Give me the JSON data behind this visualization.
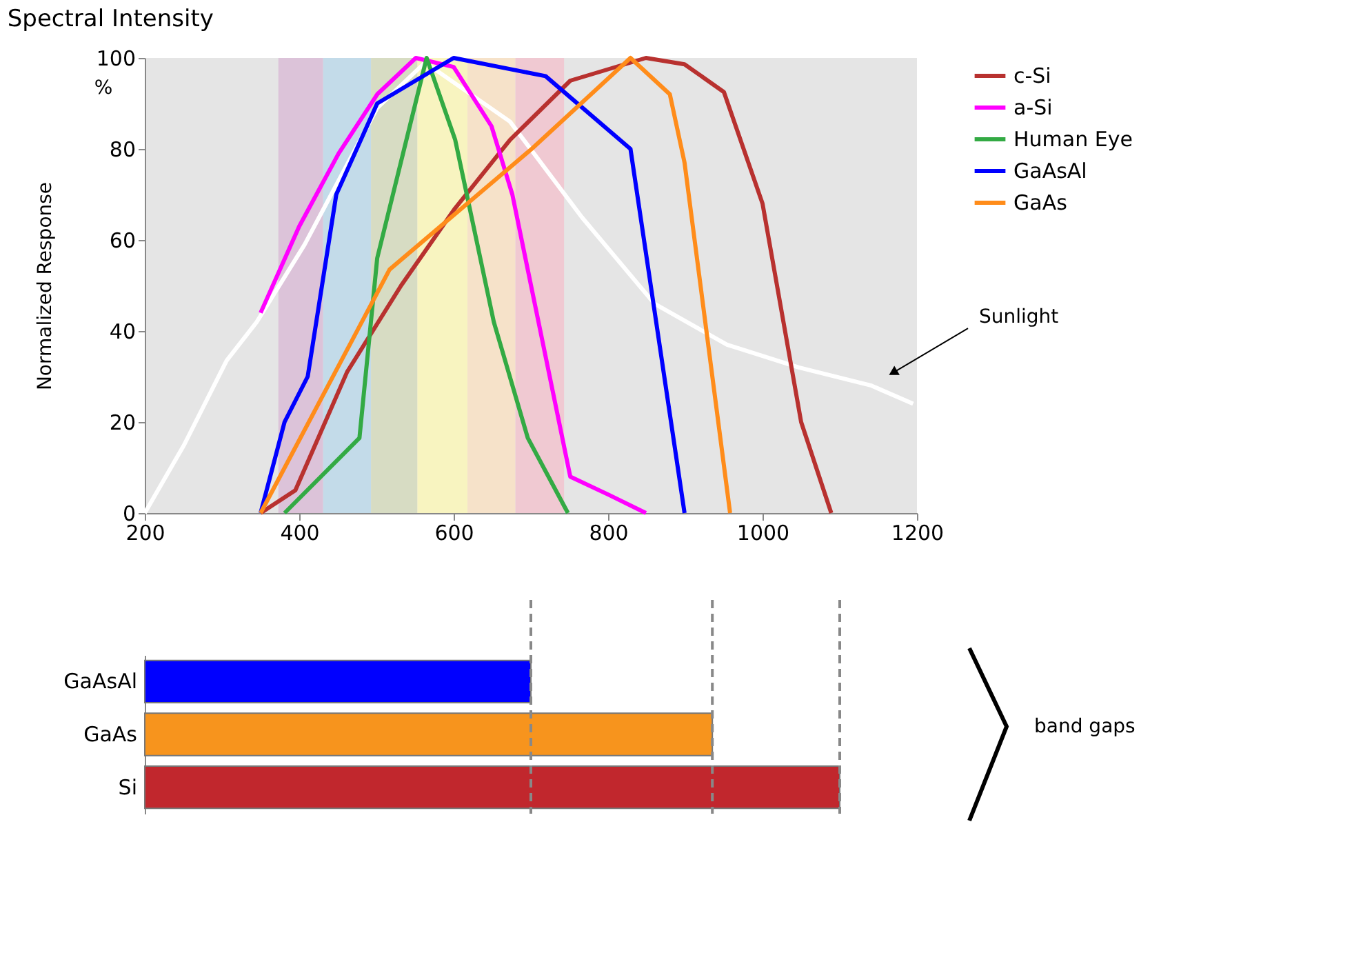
{
  "chart_data": [
    {
      "type": "line",
      "title": "Spectral Intensity",
      "ylabel": "Normalized Response",
      "annotations": [
        "%",
        "Sunlight"
      ],
      "xlim": [
        200,
        1200
      ],
      "xticks": [
        200,
        400,
        600,
        800,
        1000,
        1200
      ],
      "ylim": [
        0,
        100
      ],
      "yticks": [
        0,
        20,
        40,
        60,
        80,
        100
      ],
      "grid": false,
      "legend": "right",
      "bands": [
        {
          "axis": "x",
          "from": 373,
          "to": 431,
          "color": "#dcc3d9"
        },
        {
          "axis": "x",
          "from": 431,
          "to": 493,
          "color": "#c3dbe9"
        },
        {
          "axis": "x",
          "from": 493,
          "to": 553,
          "color": "#d7dcc3"
        },
        {
          "axis": "x",
          "from": 553,
          "to": 618,
          "color": "#f8f4c0"
        },
        {
          "axis": "x",
          "from": 618,
          "to": 680,
          "color": "#f6e2c9"
        },
        {
          "axis": "x",
          "from": 680,
          "to": 743,
          "color": "#f0c9d2"
        }
      ],
      "series": [
        {
          "color": "#ffffff",
          "x": [
            200,
            251,
            306,
            345,
            407,
            501,
            563,
            673,
            766,
            860,
            954,
            1047,
            1141,
            1195
          ],
          "values": [
            0,
            15,
            33.5,
            42,
            59,
            89,
            99,
            86,
            65,
            46,
            37,
            32,
            28,
            24
          ]
        },
        {
          "name": "c-Si",
          "color": "#b8312f",
          "x": [
            350,
            395,
            462,
            532,
            602,
            673,
            751,
            849,
            899,
            950,
            1000,
            1050,
            1089
          ],
          "values": [
            0,
            5,
            31,
            50,
            67,
            82,
            95,
            100,
            98.6,
            92.5,
            68,
            20,
            0
          ]
        },
        {
          "name": "a-Si",
          "color": "#ff00ff",
          "x": [
            350,
            400,
            451,
            501,
            551,
            600,
            649,
            676,
            751,
            801,
            849
          ],
          "values": [
            44,
            63,
            79,
            92,
            100,
            98,
            85,
            70,
            8,
            4,
            0
          ]
        },
        {
          "name": "Human Eye",
          "color": "#33aa44",
          "x": [
            381,
            478,
            501,
            565,
            602,
            652,
            696,
            748
          ],
          "values": [
            0,
            16.5,
            56,
            100,
            82,
            42,
            16.5,
            0
          ]
        },
        {
          "name": "GaAsAl",
          "color": "#0000ff",
          "x": [
            350,
            381,
            411,
            448,
            501,
            600,
            719,
            829,
            899
          ],
          "values": [
            0,
            20,
            30,
            70,
            90,
            100,
            96,
            80,
            0
          ]
        },
        {
          "name": "GaAs",
          "color": "#ff8c1a",
          "x": [
            350,
            517,
            701,
            829,
            880,
            899,
            958
          ],
          "values": [
            0,
            53.5,
            80,
            100,
            92,
            77,
            0
          ]
        }
      ]
    },
    {
      "type": "bar",
      "orientation": "horizontal",
      "categories": [
        "GaAsAl",
        "GaAs",
        "Si"
      ],
      "values": [
        700,
        935,
        1100
      ],
      "colors": [
        "#0000ff",
        "#f7941d",
        "#c1272d"
      ],
      "xlim": [
        200,
        1200
      ],
      "tick_labels": "y",
      "annotations": [
        "band gaps"
      ],
      "ref_lines": [
        {
          "axis": "x",
          "value": 700,
          "color": "#888888",
          "line_style": "dashed"
        },
        {
          "axis": "x",
          "value": 935,
          "color": "#888888",
          "line_style": "dashed"
        },
        {
          "axis": "x",
          "value": 1100,
          "color": "#888888",
          "line_style": "dashed"
        }
      ]
    }
  ]
}
